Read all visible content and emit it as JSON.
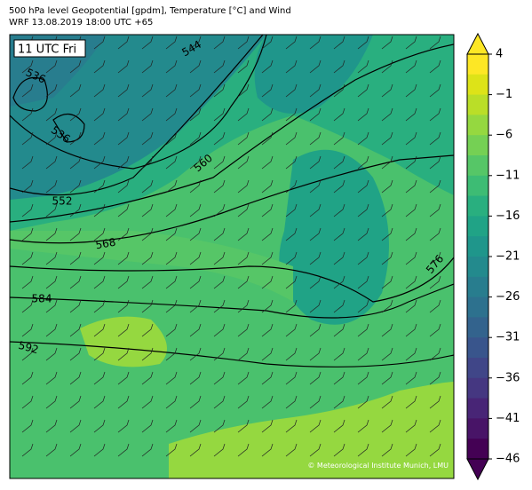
{
  "header": {
    "title": "500 hPa level Geopotential [gpdm], Temperature [°C] and Wind",
    "subtitle": "WRF 13.08.2019 18:00 UTC +65"
  },
  "map": {
    "time_label": "11 UTC Fri",
    "contour_labels": [
      544,
      536,
      536,
      560,
      552,
      568,
      584,
      592,
      576
    ],
    "credit": "© Meteorological Institute Munich, LMU"
  },
  "colorbar": {
    "ticks": [
      4,
      {
        "value": -1,
        "label": "−1"
      },
      {
        "value": -6,
        "label": "−6"
      },
      {
        "value": -11,
        "label": "−11"
      },
      {
        "value": -16,
        "label": "−16"
      },
      {
        "value": -21,
        "label": "−21"
      },
      {
        "value": -26,
        "label": "−26"
      },
      {
        "value": -31,
        "label": "−31"
      },
      {
        "value": -36,
        "label": "−36"
      },
      {
        "value": -41,
        "label": "−41"
      },
      {
        "value": -46,
        "label": "−46"
      }
    ],
    "colors": [
      "#fde725",
      "#dde318",
      "#bade28",
      "#95d840",
      "#75d054",
      "#56c667",
      "#3dbc74",
      "#29af7f",
      "#20a386",
      "#1f968b",
      "#238a8d",
      "#287d8e",
      "#2d718e",
      "#33638d",
      "#39558c",
      "#404688",
      "#453781",
      "#482576",
      "#481467",
      "#440154"
    ]
  }
}
